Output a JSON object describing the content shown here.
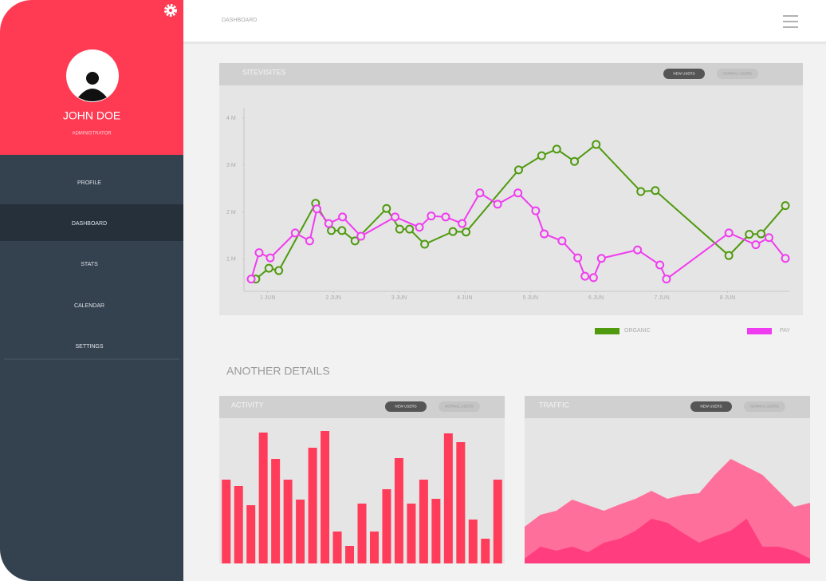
{
  "sidebar": {
    "name": "JOHN DOE",
    "role": "ADMINISTRATOR",
    "menu": [
      "PROFILE",
      "DASHBOARD",
      "STATS",
      "CALENDAR",
      "SETTINGS"
    ]
  },
  "header": {
    "title": "DASHBOARD"
  },
  "section_title": "ANOTHER DETAILS",
  "chart_data": [
    {
      "type": "line",
      "title": "SITEVISITES",
      "buttons": [
        "NEW USERS",
        "NORMAL USERS"
      ],
      "xlim": [
        0.64,
        8.94
      ],
      "ylim": [
        0.32,
        4.22
      ],
      "xticks": [
        {
          "value": 1,
          "label": "1 JUN"
        },
        {
          "value": 2,
          "label": "2 JUN"
        },
        {
          "value": 3,
          "label": "3 JUN"
        },
        {
          "value": 4,
          "label": "4 JUN"
        },
        {
          "value": 5,
          "label": "5 JUN"
        },
        {
          "value": 6,
          "label": "6 JUN"
        },
        {
          "value": 7,
          "label": "7 JUN"
        },
        {
          "value": 8,
          "label": "8 JUN"
        }
      ],
      "yticks": [
        {
          "value": 1,
          "label": "1 M"
        },
        {
          "value": 2,
          "label": "2 M"
        },
        {
          "value": 3,
          "label": "3 M"
        },
        {
          "value": 4,
          "label": "4 M"
        }
      ],
      "series": [
        {
          "name": "ORGANIC",
          "color": "#4f9a0e",
          "x": [
            0.82,
            1.02,
            1.17,
            1.73,
            1.97,
            2.13,
            2.33,
            2.81,
            3.01,
            3.16,
            3.39,
            3.82,
            4.02,
            4.82,
            5.17,
            5.4,
            5.67,
            6.0,
            6.68,
            6.9,
            8.02,
            8.33,
            8.51,
            8.88
          ],
          "values": [
            0.58,
            0.81,
            0.76,
            2.19,
            1.61,
            1.61,
            1.39,
            2.08,
            1.64,
            1.64,
            1.32,
            1.59,
            1.58,
            2.9,
            3.2,
            3.34,
            3.08,
            3.44,
            2.44,
            2.46,
            1.08,
            1.53,
            1.54,
            2.14
          ]
        },
        {
          "name": "PAY",
          "color": "#f03cf0",
          "x": [
            0.75,
            0.87,
            1.04,
            1.42,
            1.64,
            1.75,
            1.93,
            2.14,
            2.42,
            2.94,
            3.31,
            3.49,
            3.71,
            3.96,
            4.23,
            4.5,
            4.81,
            5.08,
            5.21,
            5.48,
            5.72,
            5.83,
            5.96,
            6.08,
            6.63,
            6.97,
            7.07,
            8.02,
            8.43,
            8.63,
            8.88
          ],
          "values": [
            0.58,
            1.14,
            1.03,
            1.56,
            1.39,
            2.07,
            1.76,
            1.9,
            1.49,
            1.9,
            1.68,
            1.92,
            1.9,
            1.76,
            2.41,
            2.17,
            2.41,
            2.03,
            1.54,
            1.39,
            1.03,
            0.64,
            0.61,
            1.02,
            1.2,
            0.88,
            0.58,
            1.56,
            1.31,
            1.46,
            1.02
          ]
        }
      ]
    },
    {
      "type": "bar",
      "title": "ACTIVITY",
      "buttons": [
        "NEW USERS",
        "NORMAL USERS"
      ],
      "color": "#ff3d5a",
      "ylim": [
        0,
        182
      ],
      "values": [
        105,
        97,
        73,
        164,
        131,
        105,
        80,
        145,
        166,
        40,
        22,
        75,
        40,
        93,
        132,
        75,
        105,
        81,
        163,
        152,
        55,
        31,
        105
      ]
    },
    {
      "type": "area",
      "title": "TRAFFIC",
      "buttons": [
        "NEW USERS",
        "NORMAL USERS"
      ],
      "ylim": [
        0,
        182
      ],
      "series": [
        {
          "color": "#ff6f9c",
          "values": [
            46,
            61,
            66,
            80,
            73,
            66,
            74,
            81,
            91,
            81,
            86,
            88,
            111,
            131,
            121,
            111,
            91,
            71,
            76
          ]
        },
        {
          "color": "#ff3d7f",
          "values": [
            6,
            21,
            16,
            21,
            14,
            26,
            31,
            41,
            56,
            51,
            38,
            26,
            34,
            41,
            56,
            21,
            21,
            16,
            6
          ]
        }
      ]
    }
  ]
}
